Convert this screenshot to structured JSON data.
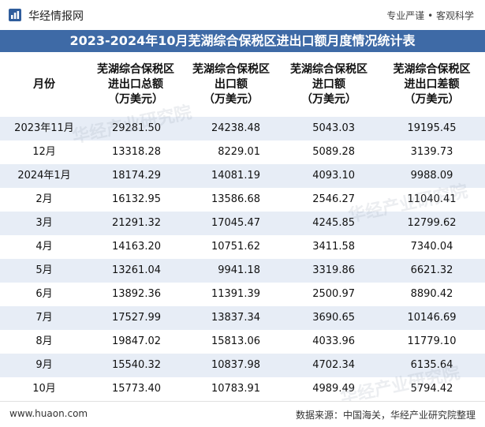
{
  "brand": {
    "name": "华经情报网",
    "slogan": "专业严谨 • 客观科学"
  },
  "title": "2023-2024年10月芜湖综合保税区进出口额月度情况统计表",
  "columns": [
    [
      "月份"
    ],
    [
      "芜湖综合保税区",
      "进出口总额",
      "（万美元）"
    ],
    [
      "芜湖综合保税区",
      "出口额",
      "（万美元）"
    ],
    [
      "芜湖综合保税区",
      "进口额",
      "（万美元）"
    ],
    [
      "芜湖综合保税区",
      "进出口差额",
      "（万美元）"
    ]
  ],
  "rows": [
    [
      "2023年11月",
      "29281.50",
      "24238.48",
      "5043.03",
      "19195.45"
    ],
    [
      "12月",
      "13318.28",
      "8229.01",
      "5089.28",
      "3139.73"
    ],
    [
      "2024年1月",
      "18174.29",
      "14081.19",
      "4093.10",
      "9988.09"
    ],
    [
      "2月",
      "16132.95",
      "13586.68",
      "2546.27",
      "11040.41"
    ],
    [
      "3月",
      "21291.32",
      "17045.47",
      "4245.85",
      "12799.62"
    ],
    [
      "4月",
      "14163.20",
      "10751.62",
      "3411.58",
      "7340.04"
    ],
    [
      "5月",
      "13261.04",
      "9941.18",
      "3319.86",
      "6621.32"
    ],
    [
      "6月",
      "13892.36",
      "11391.39",
      "2500.97",
      "8890.42"
    ],
    [
      "7月",
      "17527.99",
      "13837.34",
      "3690.65",
      "10146.69"
    ],
    [
      "8月",
      "19847.02",
      "15813.06",
      "4033.96",
      "11779.10"
    ],
    [
      "9月",
      "15540.32",
      "10837.98",
      "4702.34",
      "6135.64"
    ],
    [
      "10月",
      "15773.40",
      "10783.91",
      "4989.49",
      "5794.42"
    ]
  ],
  "footer": {
    "site": "www.huaon.com",
    "source": "数据来源：中国海关，华经产业研究院整理"
  },
  "colors": {
    "title_bg": "#3e6aa6",
    "stripe": "#e7edf6"
  }
}
